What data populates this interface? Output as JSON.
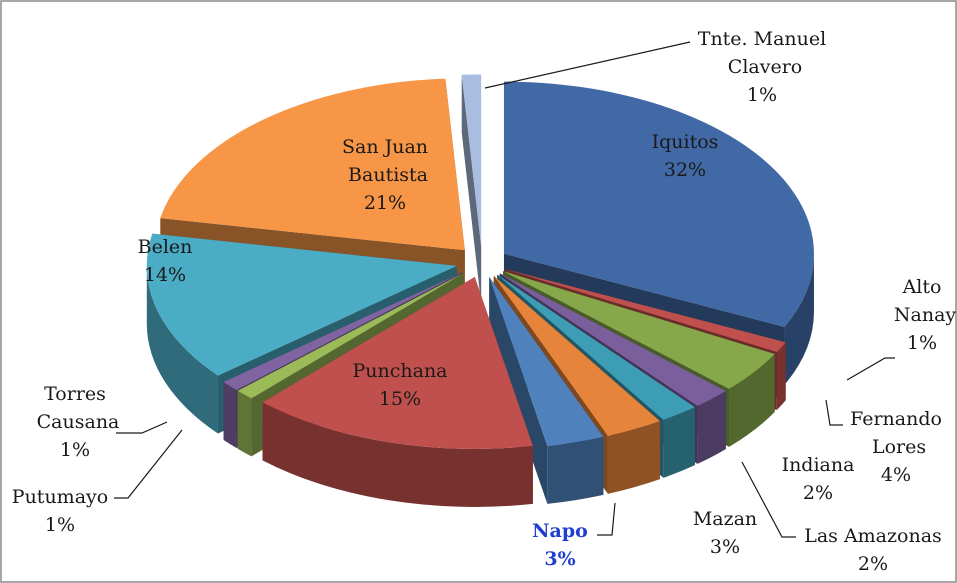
{
  "chart_data": {
    "type": "pie",
    "categories": [
      "Iquitos",
      "Alto Nanay",
      "Fernando Lores",
      "Indiana",
      "Las Amazonas",
      "Mazan",
      "Napo",
      "Punchana",
      "Putumayo",
      "Torres Causana",
      "Belen",
      "San Juan Bautista",
      "Tnte. Manuel Clavero"
    ],
    "values": [
      32,
      1,
      4,
      2,
      2,
      3,
      3,
      15,
      1,
      1,
      14,
      21,
      1
    ],
    "value_labels": [
      "32%",
      "1%",
      "4%",
      "2%",
      "2%",
      "3%",
      "3%",
      "15%",
      "1%",
      "1%",
      "14%",
      "21%",
      "1%"
    ],
    "colors": [
      "#4169a6",
      "#c0504d",
      "#86a84a",
      "#7a5f9c",
      "#3d9db5",
      "#e5843a",
      "#4f81bd",
      "#c0504d",
      "#9bbb59",
      "#8064a2",
      "#4bacc6",
      "#f79646",
      "#a9bde0"
    ]
  }
}
